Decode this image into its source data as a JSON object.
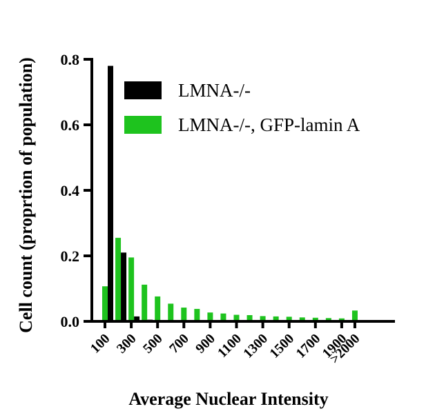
{
  "chart_data": {
    "type": "bar",
    "xlabel": "Average Nuclear Intensity",
    "ylabel": "Cell count (proprtion of population)",
    "ylim": [
      0,
      0.8
    ],
    "yticks": [
      "0.0",
      "0.2",
      "0.4",
      "0.6",
      "0.8"
    ],
    "ytick_values": [
      0,
      0.2,
      0.4,
      0.6,
      0.8
    ],
    "categories": [
      "100",
      "200",
      "300",
      "400",
      "500",
      "600",
      "700",
      "800",
      "900",
      "1000",
      "1100",
      "1200",
      "1300",
      "1400",
      "1500",
      "1600",
      "1700",
      "1800",
      "1900",
      ">2000"
    ],
    "xtick_labels": [
      "100",
      "300",
      "500",
      "700",
      "900",
      "1100",
      "1300",
      "1500",
      "1700",
      "1900",
      ">2000"
    ],
    "xtick_indices": [
      0,
      2,
      4,
      6,
      8,
      10,
      12,
      14,
      16,
      18,
      19
    ],
    "series": [
      {
        "name": "LMNA-/-",
        "color": "#000000",
        "values": [
          0.78,
          0.21,
          0.015,
          0.005,
          0.003,
          0.002,
          0.001,
          0.001,
          0,
          0,
          0,
          0,
          0,
          0,
          0,
          0,
          0,
          0,
          0,
          0
        ]
      },
      {
        "name": "LMNA-/-, GFP-lamin A",
        "color": "#1ec31e",
        "values": [
          0.107,
          0.255,
          0.195,
          0.112,
          0.076,
          0.054,
          0.042,
          0.038,
          0.027,
          0.024,
          0.02,
          0.019,
          0.016,
          0.015,
          0.014,
          0.012,
          0.011,
          0.01,
          0.009,
          0.033
        ]
      }
    ],
    "legend_position": "top-right",
    "grid": false
  }
}
